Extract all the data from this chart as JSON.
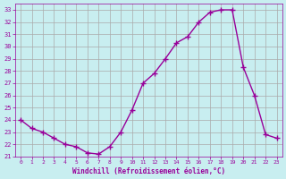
{
  "x": [
    0,
    1,
    2,
    3,
    4,
    5,
    6,
    7,
    8,
    9,
    10,
    11,
    12,
    13,
    14,
    15,
    16,
    17,
    18,
    19,
    20,
    21,
    22,
    23
  ],
  "y": [
    24,
    23.3,
    23,
    22.5,
    22,
    21.8,
    21.3,
    21.2,
    21.8,
    23,
    24.8,
    27,
    27.8,
    29,
    30.3,
    30.8,
    32,
    32.8,
    33,
    33,
    28.3,
    26,
    22.8,
    22.5
  ],
  "line_color": "#990099",
  "marker": "+",
  "marker_size": 4,
  "bg_color": "#c8eef0",
  "grid_color": "#aaaaaa",
  "xlabel": "Windchill (Refroidissement éolien,°C)",
  "xlabel_color": "#990099",
  "tick_color": "#990099",
  "ylim": [
    21,
    33.5
  ],
  "yticks": [
    21,
    22,
    23,
    24,
    25,
    26,
    27,
    28,
    29,
    30,
    31,
    32,
    33
  ],
  "xticks": [
    0,
    1,
    2,
    3,
    4,
    5,
    6,
    7,
    8,
    9,
    10,
    11,
    12,
    13,
    14,
    15,
    16,
    17,
    18,
    19,
    20,
    21,
    22,
    23
  ]
}
